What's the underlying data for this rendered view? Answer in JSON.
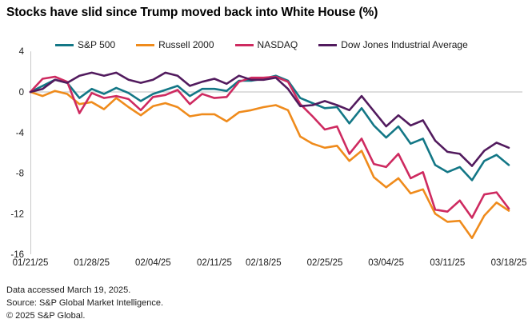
{
  "title": "Stocks have slid since Trump moved back into White House (%)",
  "footer": {
    "line1": "Data accessed March 19, 2025.",
    "line2": "Source: S&P Global Market Intelligence.",
    "line3": "© 2025 S&P Global."
  },
  "colors": {
    "sp500": "#137786",
    "russell2000": "#ef8b1c",
    "nasdaq": "#ce2a60",
    "dow": "#521b5e",
    "gridline": "#c9c9c9",
    "text": "#1a1a1a"
  },
  "chart_data": {
    "type": "line",
    "title": "Stocks have slid since Trump moved back into White House (%)",
    "xlabel": "",
    "ylabel": "",
    "ylim": [
      -16,
      4
    ],
    "yticks": [
      4,
      0,
      -4,
      -8,
      -12,
      -16
    ],
    "xtick_indices": [
      0,
      5,
      10,
      15,
      19,
      24,
      29,
      34,
      39
    ],
    "xtick_labels": [
      "01/21/25",
      "01/28/25",
      "02/04/25",
      "02/11/25",
      "02/18/25",
      "02/25/25",
      "03/04/25",
      "03/11/25",
      "03/18/25"
    ],
    "grid": "zero-line-only",
    "legend_position": "top",
    "x": [
      "01/21/25",
      "01/22/25",
      "01/23/25",
      "01/24/25",
      "01/27/25",
      "01/28/25",
      "01/29/25",
      "01/30/25",
      "01/31/25",
      "02/03/25",
      "02/04/25",
      "02/05/25",
      "02/06/25",
      "02/07/25",
      "02/10/25",
      "02/11/25",
      "02/12/25",
      "02/13/25",
      "02/14/25",
      "02/18/25",
      "02/19/25",
      "02/20/25",
      "02/21/25",
      "02/24/25",
      "02/25/25",
      "02/26/25",
      "02/27/25",
      "02/28/25",
      "03/03/25",
      "03/04/25",
      "03/05/25",
      "03/06/25",
      "03/07/25",
      "03/10/25",
      "03/11/25",
      "03/12/25",
      "03/13/25",
      "03/14/25",
      "03/17/25",
      "03/18/25"
    ],
    "series": [
      {
        "name": "S&P 500",
        "color": "#137786",
        "values": [
          0,
          0.6,
          1.2,
          0.9,
          -0.6,
          0.3,
          -0.2,
          0.4,
          -0.1,
          -0.9,
          -0.2,
          0.2,
          0.6,
          -0.4,
          0.3,
          0.3,
          0.1,
          1.1,
          1.1,
          1.3,
          1.6,
          1.1,
          -0.6,
          -1.1,
          -1.6,
          -1.5,
          -3.1,
          -1.6,
          -3.3,
          -4.5,
          -3.4,
          -5.1,
          -4.6,
          -7.2,
          -7.9,
          -7.4,
          -8.7,
          -6.8,
          -6.2,
          -7.2
        ]
      },
      {
        "name": "Russell 2000",
        "color": "#ef8b1c",
        "values": [
          0,
          -0.4,
          0.1,
          -0.2,
          -1.2,
          -1.0,
          -1.7,
          -0.6,
          -1.5,
          -2.3,
          -1.4,
          -1.1,
          -1.5,
          -2.4,
          -2.2,
          -2.2,
          -2.9,
          -2.0,
          -1.8,
          -1.5,
          -1.3,
          -1.8,
          -4.4,
          -5.1,
          -5.5,
          -5.3,
          -6.8,
          -5.8,
          -8.4,
          -9.4,
          -8.5,
          -10.0,
          -9.6,
          -12.0,
          -12.8,
          -12.7,
          -14.4,
          -12.2,
          -10.9,
          -11.7
        ]
      },
      {
        "name": "NASDAQ",
        "color": "#ce2a60",
        "values": [
          0,
          1.3,
          1.5,
          1.0,
          -2.1,
          -0.1,
          -0.6,
          -0.4,
          -0.7,
          -1.8,
          -0.5,
          -0.3,
          0.2,
          -1.2,
          -0.2,
          -0.6,
          -0.5,
          1.0,
          1.4,
          1.4,
          1.5,
          1.0,
          -1.2,
          -2.4,
          -3.7,
          -3.4,
          -6.1,
          -4.6,
          -7.1,
          -7.4,
          -6.1,
          -8.5,
          -7.9,
          -11.6,
          -11.8,
          -10.7,
          -12.4,
          -10.1,
          -9.9,
          -11.5
        ]
      },
      {
        "name": "Dow Jones Industrial Average",
        "color": "#521b5e",
        "values": [
          0,
          0.3,
          1.2,
          0.9,
          1.6,
          1.9,
          1.6,
          1.9,
          1.2,
          0.9,
          1.2,
          1.9,
          1.6,
          0.6,
          1.0,
          1.3,
          0.8,
          1.6,
          1.2,
          1.2,
          1.4,
          0.3,
          -1.4,
          -1.3,
          -0.9,
          -1.3,
          -1.8,
          -0.4,
          -1.9,
          -3.4,
          -2.3,
          -3.3,
          -2.8,
          -4.8,
          -5.9,
          -6.1,
          -7.3,
          -5.8,
          -5.0,
          -5.5
        ]
      }
    ]
  }
}
